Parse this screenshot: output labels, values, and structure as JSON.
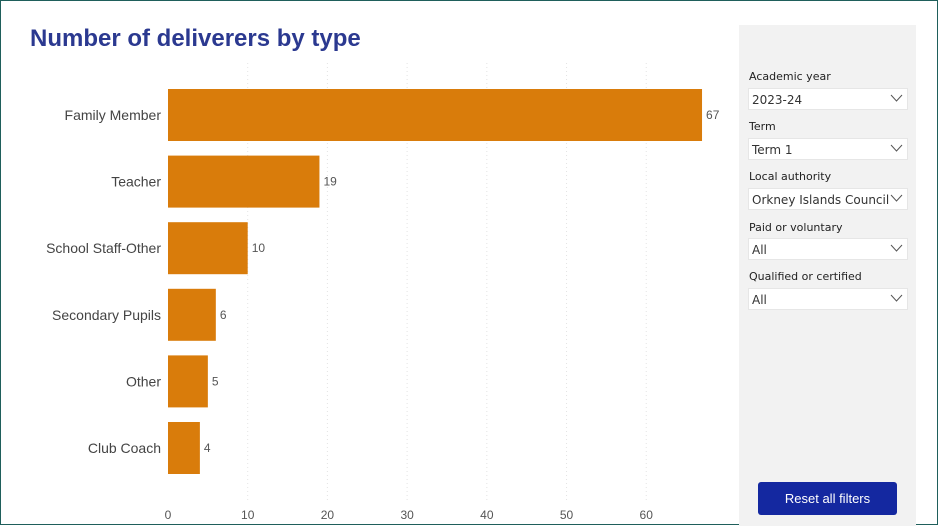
{
  "chart_data": {
    "type": "bar",
    "orientation": "horizontal",
    "title": "Number of deliverers by type",
    "categories": [
      "Family Member",
      "Teacher",
      "School Staff-Other",
      "Secondary Pupils",
      "Other",
      "Club Coach"
    ],
    "values": [
      67,
      19,
      10,
      6,
      5,
      4
    ],
    "xlim": [
      0,
      68
    ],
    "xticks": [
      0,
      10,
      20,
      30,
      40,
      50,
      60
    ],
    "grid": true,
    "bar_color": "#d97c0b"
  },
  "filters": [
    {
      "label": "Academic year",
      "value": "2023-24"
    },
    {
      "label": "Term",
      "value": "Term 1"
    },
    {
      "label": "Local authority",
      "value": "Orkney Islands Council"
    },
    {
      "label": "Paid or voluntary",
      "value": "All"
    },
    {
      "label": "Qualified or certified",
      "value": "All"
    }
  ],
  "reset_label": "Reset all filters",
  "colors": {
    "title": "#2b3990",
    "button": "#1428a0",
    "panel": "#f2f2f2",
    "bar": "#d97c0b"
  }
}
